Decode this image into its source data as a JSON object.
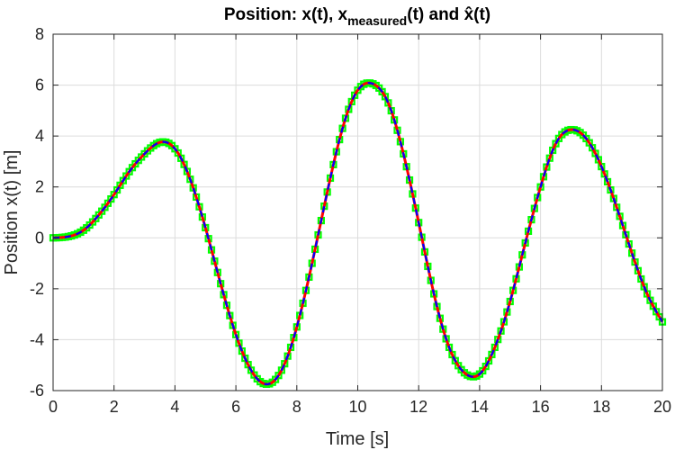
{
  "chart_data": {
    "type": "line",
    "title": {
      "main": "Position: x(t), x",
      "subscript": "measured",
      "middle": "(t) and ",
      "hat": "x̂(t)"
    },
    "xlabel": "Time [s]",
    "ylabel": "Position x(t) [m]",
    "xlim": [
      0,
      20
    ],
    "ylim": [
      -6,
      8
    ],
    "xticks": [
      0,
      2,
      4,
      6,
      8,
      10,
      12,
      14,
      16,
      18,
      20
    ],
    "xtick_labels": [
      "0",
      "2",
      "4",
      "6",
      "8",
      "10",
      "12",
      "14",
      "16",
      "18",
      "20"
    ],
    "yticks": [
      -6,
      -4,
      -2,
      0,
      2,
      4,
      6,
      8
    ],
    "ytick_labels": [
      "-6",
      "-4",
      "-2",
      "0",
      "2",
      "4",
      "6",
      "8"
    ],
    "grid": true,
    "series": [
      {
        "role": "measured",
        "style": "marker",
        "color": "#00ff00"
      },
      {
        "role": "true",
        "style": "solid",
        "color": "#ff0000"
      },
      {
        "role": "estimate",
        "style": "dashed",
        "color": "#0000ff"
      }
    ],
    "x": [
      0,
      0.5,
      1,
      1.5,
      2,
      2.5,
      3,
      3.5,
      4,
      4.5,
      5,
      5.5,
      6,
      6.5,
      7,
      7.5,
      8,
      8.5,
      9,
      9.5,
      10,
      10.5,
      11,
      11.5,
      12,
      12.5,
      13,
      13.5,
      14,
      14.5,
      15,
      15.5,
      16,
      16.5,
      17,
      17.5,
      18,
      18.5,
      19,
      19.5,
      20
    ],
    "y": [
      0,
      0.05,
      0.3,
      0.9,
      1.7,
      2.6,
      3.3,
      3.75,
      3.5,
      2.3,
      0.4,
      -1.8,
      -3.8,
      -5.2,
      -5.75,
      -5.2,
      -3.5,
      -1.0,
      1.8,
      4.3,
      5.8,
      6.05,
      5.3,
      3.3,
      0.6,
      -2.2,
      -4.3,
      -5.3,
      -5.35,
      -4.3,
      -2.5,
      -0.2,
      2.0,
      3.7,
      4.25,
      3.9,
      2.8,
      1.2,
      -0.6,
      -2.2,
      -3.3
    ]
  }
}
